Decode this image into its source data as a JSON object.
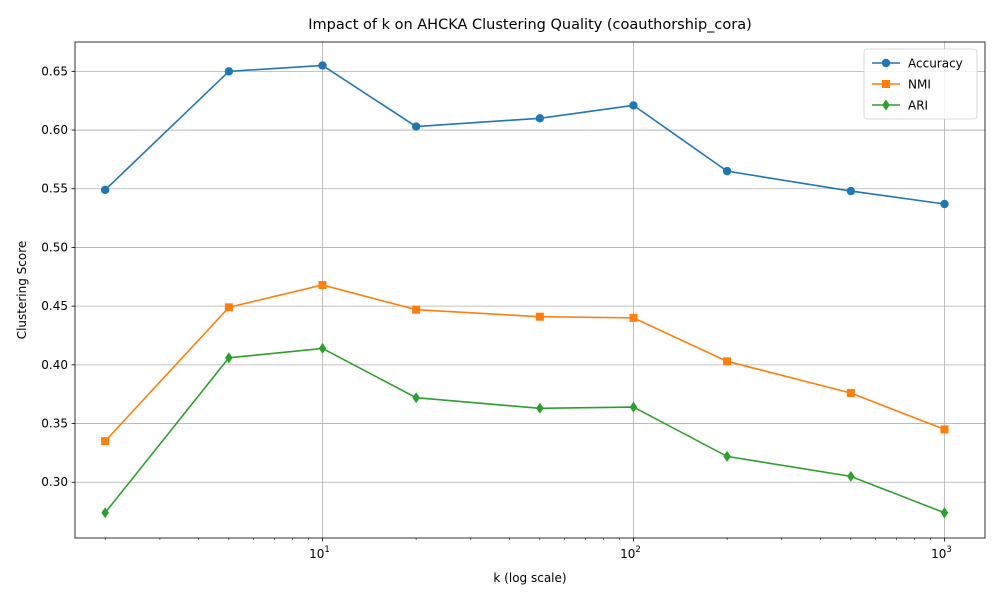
{
  "chart_data": {
    "type": "line",
    "title": "Impact of k on AHCKA Clustering Quality (coauthorship_cora)",
    "xlabel": "k (log scale)",
    "ylabel": "Clustering Score",
    "x_scale": "log",
    "x": [
      2,
      5,
      10,
      20,
      50,
      100,
      200,
      500,
      1000
    ],
    "xlim": [
      1.6,
      1350
    ],
    "ylim": [
      0.2525,
      0.675
    ],
    "x_ticks": [
      {
        "value": 10,
        "base": "10",
        "exp": "1"
      },
      {
        "value": 100,
        "base": "10",
        "exp": "2"
      },
      {
        "value": 1000,
        "base": "10",
        "exp": "3"
      }
    ],
    "y_ticks": [
      "0.30",
      "0.35",
      "0.40",
      "0.45",
      "0.50",
      "0.55",
      "0.60",
      "0.65"
    ],
    "grid": true,
    "legend_position": "top-right",
    "series": [
      {
        "name": "Accuracy",
        "color": "#1f77b4",
        "marker": "circle",
        "values": [
          0.549,
          0.65,
          0.655,
          0.603,
          0.61,
          0.621,
          0.565,
          0.548,
          0.537
        ]
      },
      {
        "name": "NMI",
        "color": "#ff7f0e",
        "marker": "square",
        "values": [
          0.335,
          0.449,
          0.468,
          0.447,
          0.441,
          0.44,
          0.403,
          0.376,
          0.345
        ]
      },
      {
        "name": "ARI",
        "color": "#2ca02c",
        "marker": "diamond",
        "values": [
          0.274,
          0.406,
          0.414,
          0.372,
          0.363,
          0.364,
          0.322,
          0.305,
          0.274
        ]
      }
    ]
  }
}
